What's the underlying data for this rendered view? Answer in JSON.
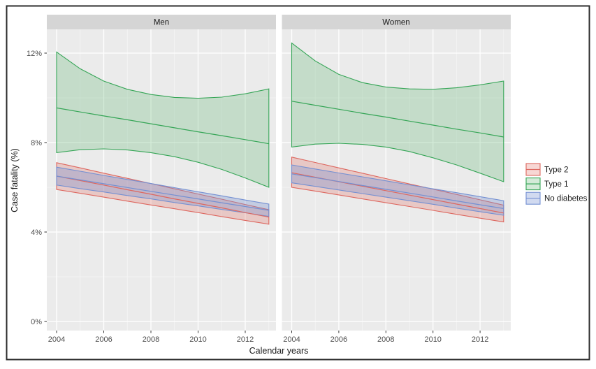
{
  "chart_data": {
    "type": "area",
    "title": "",
    "xlabel": "Calendar years",
    "ylabel": "Case fatality (%)",
    "x": [
      2004,
      2005,
      2006,
      2007,
      2008,
      2009,
      2010,
      2011,
      2012,
      2013
    ],
    "x_ticks": {
      "major": [
        2004,
        2006,
        2008,
        2010,
        2012
      ],
      "minor": [
        2005,
        2007,
        2009,
        2011,
        2013
      ]
    },
    "y_ticks": {
      "major": [
        {
          "value": 0,
          "label": "0%"
        },
        {
          "value": 4,
          "label": "4%"
        },
        {
          "value": 8,
          "label": "8%"
        },
        {
          "value": 12,
          "label": "12%"
        }
      ],
      "minor": [
        2,
        6,
        10
      ]
    },
    "ylim": [
      -0.45,
      13.05
    ],
    "xlim": [
      2003.55,
      2013.35
    ],
    "grid": true,
    "legend_position": "right",
    "facets": [
      {
        "label": "Men",
        "series": [
          {
            "name": "Type 2",
            "key": "type2",
            "mean": [
              6.5,
              6.3,
              6.1,
              5.89,
              5.69,
              5.48,
              5.28,
              5.08,
              4.87,
              4.67
            ],
            "lower": [
              5.9,
              5.73,
              5.56,
              5.38,
              5.21,
              5.04,
              4.87,
              4.69,
              4.52,
              4.35
            ],
            "upper": [
              7.1,
              6.87,
              6.63,
              6.4,
              6.17,
              5.93,
              5.7,
              5.47,
              5.23,
              5.0
            ]
          },
          {
            "name": "Type 1",
            "key": "type1",
            "mean": [
              9.55,
              9.37,
              9.19,
              9.02,
              8.84,
              8.66,
              8.48,
              8.31,
              8.13,
              7.95
            ],
            "lower": [
              7.55,
              7.68,
              7.72,
              7.67,
              7.55,
              7.37,
              7.12,
              6.8,
              6.42,
              6.0
            ],
            "upper": [
              12.05,
              11.3,
              10.75,
              10.38,
              10.15,
              10.02,
              9.98,
              10.03,
              10.18,
              10.4
            ]
          },
          {
            "name": "No diabetes",
            "key": "nodiab",
            "mean": [
              6.5,
              6.33,
              6.16,
              5.99,
              5.82,
              5.65,
              5.48,
              5.31,
              5.14,
              4.97
            ],
            "lower": [
              6.1,
              5.94,
              5.79,
              5.63,
              5.48,
              5.32,
              5.17,
              5.01,
              4.86,
              4.7
            ],
            "upper": [
              6.9,
              6.72,
              6.53,
              6.35,
              6.17,
              5.98,
              5.8,
              5.62,
              5.43,
              5.25
            ]
          }
        ]
      },
      {
        "label": "Women",
        "series": [
          {
            "name": "Type 2",
            "key": "type2",
            "mean": [
              6.65,
              6.45,
              6.25,
              6.05,
              5.85,
              5.65,
              5.45,
              5.25,
              5.05,
              4.85
            ],
            "lower": [
              6.0,
              5.83,
              5.66,
              5.48,
              5.31,
              5.14,
              4.97,
              4.79,
              4.62,
              4.45
            ],
            "upper": [
              7.35,
              7.11,
              6.87,
              6.63,
              6.39,
              6.15,
              5.92,
              5.68,
              5.44,
              5.2
            ]
          },
          {
            "name": "Type 1",
            "key": "type1",
            "mean": [
              9.85,
              9.67,
              9.49,
              9.31,
              9.14,
              8.96,
              8.78,
              8.6,
              8.43,
              8.25
            ],
            "lower": [
              7.8,
              7.93,
              7.97,
              7.92,
              7.8,
              7.6,
              7.32,
              7.0,
              6.63,
              6.25
            ],
            "upper": [
              12.45,
              11.65,
              11.05,
              10.68,
              10.48,
              10.4,
              10.38,
              10.45,
              10.58,
              10.75
            ]
          },
          {
            "name": "No diabetes",
            "key": "nodiab",
            "mean": [
              6.6,
              6.43,
              6.26,
              6.08,
              5.91,
              5.74,
              5.57,
              5.39,
              5.22,
              5.05
            ],
            "lower": [
              6.2,
              6.04,
              5.88,
              5.72,
              5.56,
              5.4,
              5.24,
              5.07,
              4.91,
              4.75
            ],
            "upper": [
              7.0,
              6.82,
              6.64,
              6.47,
              6.29,
              6.11,
              5.93,
              5.76,
              5.58,
              5.4
            ]
          }
        ]
      }
    ],
    "legend": [
      {
        "label": "Type 2",
        "key": "type2"
      },
      {
        "label": "Type 1",
        "key": "type1"
      },
      {
        "label": "No diabetes",
        "key": "nodiab"
      }
    ],
    "draw_order": [
      "type2",
      "type1",
      "nodiab"
    ],
    "colors": {
      "type2": {
        "stroke": "#dd675f",
        "fill": "rgba(226,110,100,0.28)"
      },
      "type1": {
        "stroke": "#35a556",
        "fill": "rgba(70,170,90,0.24)"
      },
      "nodiab": {
        "stroke": "#7490d2",
        "fill": "rgba(116,144,210,0.33)"
      },
      "panel_bg": "#ebebeb",
      "strip_bg": "#d5d5d5",
      "grid_major": "#ffffff",
      "grid_minor": "#f6f6f6",
      "tick_text": "#4d4d4d",
      "axis_text": "#1a1a1a",
      "frame": "#2b2b2b"
    }
  }
}
